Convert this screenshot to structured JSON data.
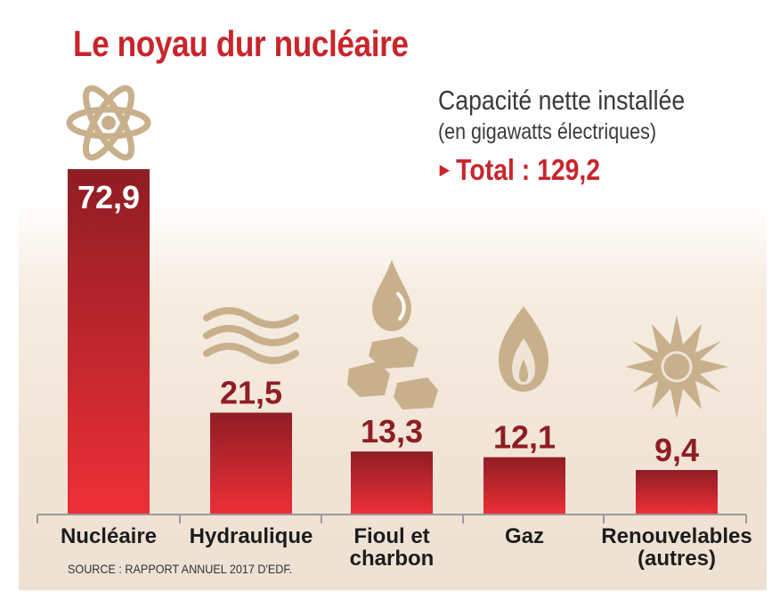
{
  "header": {
    "title": "Le noyau dur nucléaire",
    "subtitle": "Capacité nette installée",
    "unit_note": "(en gigawatts électriques)",
    "total_marker": "►",
    "total": "Total : 129,2"
  },
  "footer": {
    "source": "SOURCE : RAPPORT ANNUEL 2017 D'EDF."
  },
  "colors": {
    "accent": "#c9252c",
    "bar_top": "#8f1d24",
    "bar_bottom": "#ee2f37",
    "icon": "#c9b08c",
    "value_label": "#8f1d24"
  },
  "chart_data": {
    "type": "bar",
    "title": "Le noyau dur nucléaire",
    "ylabel": "Capacité nette installée (en gigawatts électriques)",
    "categories": [
      "Nucléaire",
      "Hydraulique",
      "Fioul et charbon",
      "Gaz",
      "Renouvelables (autres)"
    ],
    "category_lines": [
      [
        "Nucléaire"
      ],
      [
        "Hydraulique"
      ],
      [
        "Fioul et",
        "charbon"
      ],
      [
        "Gaz"
      ],
      [
        "Renouvelables",
        "(autres)"
      ]
    ],
    "values": [
      72.9,
      21.5,
      13.3,
      12.1,
      9.4
    ],
    "value_labels": [
      "72,9",
      "21,5",
      "13,3",
      "12,1",
      "9,4"
    ],
    "category_icons": [
      "atom-icon",
      "water-waves-icon",
      "oil-drop-and-coal-icon",
      "gas-flame-icon",
      "sun-icon"
    ],
    "ylim": [
      0,
      72.9
    ],
    "grid": false,
    "legend": "none"
  }
}
